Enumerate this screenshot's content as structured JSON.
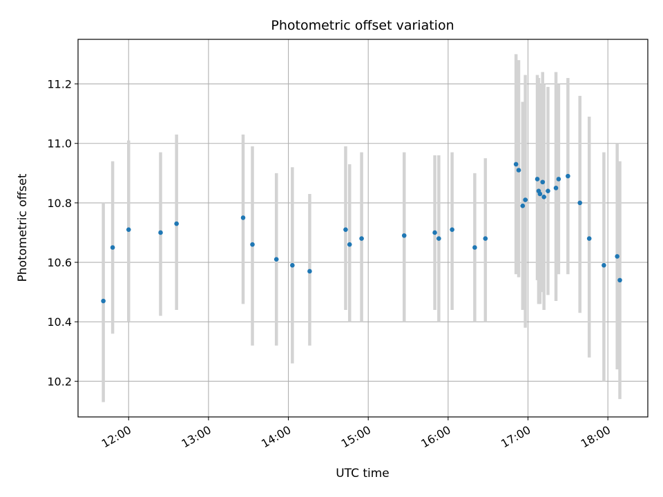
{
  "chart_data": {
    "type": "scatter",
    "title": "Photometric offset variation",
    "xlabel": "UTC time",
    "ylabel": "Photometric offset",
    "xlim": [
      "11:22",
      "18:30"
    ],
    "ylim": [
      10.08,
      11.35
    ],
    "xticks": [
      "12:00",
      "13:00",
      "14:00",
      "15:00",
      "16:00",
      "17:00",
      "18:00"
    ],
    "yticks": [
      "10.2",
      "10.4",
      "10.6",
      "10.8",
      "11.0",
      "11.2"
    ],
    "grid": true,
    "legend": "none",
    "colors": {
      "point": "#1f77b4",
      "errorbar": "#d3d3d3",
      "grid": "#b0b0b0"
    },
    "series": [
      {
        "points": [
          {
            "x": "11:41",
            "y": 10.47,
            "ylow": 10.13,
            "yhigh": 10.8
          },
          {
            "x": "11:48",
            "y": 10.65,
            "ylow": 10.36,
            "yhigh": 10.94
          },
          {
            "x": "12:00",
            "y": 10.71,
            "ylow": 10.4,
            "yhigh": 11.01
          },
          {
            "x": "12:24",
            "y": 10.7,
            "ylow": 10.42,
            "yhigh": 10.97
          },
          {
            "x": "12:36",
            "y": 10.73,
            "ylow": 10.44,
            "yhigh": 11.03
          },
          {
            "x": "13:26",
            "y": 10.75,
            "ylow": 10.46,
            "yhigh": 11.03
          },
          {
            "x": "13:33",
            "y": 10.66,
            "ylow": 10.32,
            "yhigh": 10.99
          },
          {
            "x": "13:51",
            "y": 10.61,
            "ylow": 10.32,
            "yhigh": 10.9
          },
          {
            "x": "14:03",
            "y": 10.59,
            "ylow": 10.26,
            "yhigh": 10.92
          },
          {
            "x": "14:16",
            "y": 10.57,
            "ylow": 10.32,
            "yhigh": 10.83
          },
          {
            "x": "14:43",
            "y": 10.71,
            "ylow": 10.44,
            "yhigh": 10.99
          },
          {
            "x": "14:46",
            "y": 10.66,
            "ylow": 10.4,
            "yhigh": 10.93
          },
          {
            "x": "14:55",
            "y": 10.68,
            "ylow": 10.4,
            "yhigh": 10.97
          },
          {
            "x": "15:27",
            "y": 10.69,
            "ylow": 10.4,
            "yhigh": 10.97
          },
          {
            "x": "15:50",
            "y": 10.7,
            "ylow": 10.44,
            "yhigh": 10.96
          },
          {
            "x": "15:53",
            "y": 10.68,
            "ylow": 10.4,
            "yhigh": 10.96
          },
          {
            "x": "16:03",
            "y": 10.71,
            "ylow": 10.44,
            "yhigh": 10.97
          },
          {
            "x": "16:20",
            "y": 10.65,
            "ylow": 10.4,
            "yhigh": 10.9
          },
          {
            "x": "16:28",
            "y": 10.68,
            "ylow": 10.4,
            "yhigh": 10.95
          },
          {
            "x": "16:51",
            "y": 10.93,
            "ylow": 10.56,
            "yhigh": 11.3
          },
          {
            "x": "16:53",
            "y": 10.91,
            "ylow": 10.55,
            "yhigh": 11.28
          },
          {
            "x": "16:56",
            "y": 10.79,
            "ylow": 10.44,
            "yhigh": 11.14
          },
          {
            "x": "16:58",
            "y": 10.81,
            "ylow": 10.38,
            "yhigh": 11.23
          },
          {
            "x": "17:07",
            "y": 10.88,
            "ylow": 10.54,
            "yhigh": 11.23
          },
          {
            "x": "17:08",
            "y": 10.84,
            "ylow": 10.46,
            "yhigh": 11.22
          },
          {
            "x": "17:09",
            "y": 10.83,
            "ylow": 10.46,
            "yhigh": 11.2
          },
          {
            "x": "17:11",
            "y": 10.87,
            "ylow": 10.5,
            "yhigh": 11.24
          },
          {
            "x": "17:12",
            "y": 10.82,
            "ylow": 10.44,
            "yhigh": 11.2
          },
          {
            "x": "17:15",
            "y": 10.84,
            "ylow": 10.49,
            "yhigh": 11.19
          },
          {
            "x": "17:21",
            "y": 10.85,
            "ylow": 10.47,
            "yhigh": 11.24
          },
          {
            "x": "17:23",
            "y": 10.88,
            "ylow": 10.56,
            "yhigh": 11.2
          },
          {
            "x": "17:30",
            "y": 10.89,
            "ylow": 10.56,
            "yhigh": 11.22
          },
          {
            "x": "17:39",
            "y": 10.8,
            "ylow": 10.43,
            "yhigh": 11.16
          },
          {
            "x": "17:46",
            "y": 10.68,
            "ylow": 10.28,
            "yhigh": 11.09
          },
          {
            "x": "17:57",
            "y": 10.59,
            "ylow": 10.2,
            "yhigh": 10.97
          },
          {
            "x": "18:07",
            "y": 10.62,
            "ylow": 10.24,
            "yhigh": 11.0
          },
          {
            "x": "18:09",
            "y": 10.54,
            "ylow": 10.14,
            "yhigh": 10.94
          }
        ]
      }
    ]
  }
}
